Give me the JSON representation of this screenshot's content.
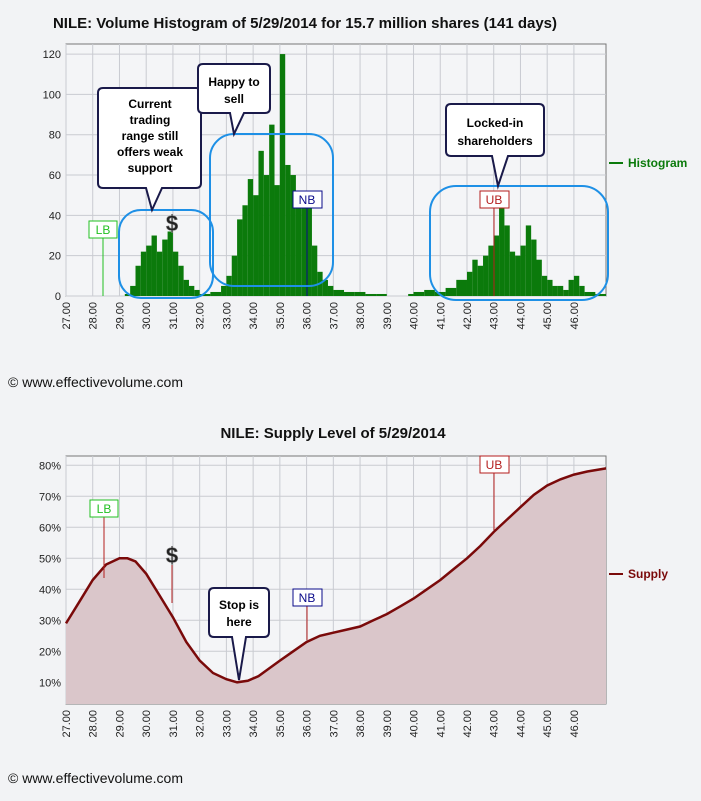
{
  "copyright": "© www.effectivevolume.com",
  "chart_data": [
    {
      "type": "bar",
      "title": "NILE: Volume Histogram of 5/29/2014 for 15.7 million shares (141 days)",
      "xlim": [
        27.0,
        47.2
      ],
      "ylim": [
        0,
        125
      ],
      "x_ticks": [
        "27.00",
        "28.00",
        "29.00",
        "30.00",
        "31.00",
        "32.00",
        "33.00",
        "34.00",
        "35.00",
        "36.00",
        "37.00",
        "38.00",
        "39.00",
        "40.00",
        "41.00",
        "42.00",
        "43.00",
        "44.00",
        "45.00",
        "46.00"
      ],
      "y_ticks": [
        0,
        20,
        40,
        60,
        80,
        100,
        120
      ],
      "grid": true,
      "legend": "right",
      "series": [
        {
          "name": "Histogram",
          "color": "#0b7a0b",
          "x": [
            27.0,
            27.4,
            27.8,
            28.2,
            28.6,
            29.0,
            29.2,
            29.4,
            29.6,
            29.8,
            30.0,
            30.2,
            30.4,
            30.6,
            30.8,
            31.0,
            31.2,
            31.4,
            31.6,
            31.8,
            32.0,
            32.4,
            32.8,
            33.0,
            33.2,
            33.4,
            33.6,
            33.8,
            34.0,
            34.2,
            34.4,
            34.6,
            34.8,
            35.0,
            35.2,
            35.4,
            35.6,
            35.8,
            36.0,
            36.2,
            36.4,
            36.6,
            36.8,
            37.0,
            37.4,
            37.8,
            38.2,
            38.6,
            39.0,
            39.4,
            39.8,
            40.0,
            40.4,
            40.8,
            41.2,
            41.6,
            42.0,
            42.2,
            42.4,
            42.6,
            42.8,
            43.0,
            43.2,
            43.4,
            43.6,
            43.8,
            44.0,
            44.2,
            44.4,
            44.6,
            44.8,
            45.0,
            45.2,
            45.4,
            45.6,
            45.8,
            46.0,
            46.2,
            46.4,
            46.8,
            47.2
          ],
          "values": [
            0,
            0,
            0,
            0,
            0,
            0,
            1,
            5,
            15,
            22,
            25,
            30,
            22,
            28,
            32,
            22,
            15,
            8,
            5,
            3,
            1,
            2,
            5,
            10,
            20,
            38,
            45,
            58,
            50,
            72,
            60,
            85,
            55,
            120,
            65,
            60,
            50,
            45,
            44,
            25,
            12,
            8,
            5,
            3,
            2,
            2,
            1,
            1,
            0,
            0,
            1,
            2,
            3,
            2,
            4,
            8,
            12,
            18,
            15,
            20,
            25,
            30,
            44,
            35,
            22,
            20,
            25,
            35,
            28,
            18,
            10,
            8,
            5,
            5,
            3,
            8,
            10,
            5,
            2,
            1,
            0
          ]
        }
      ],
      "annotations": [
        {
          "label": "LB",
          "x": 28.25,
          "color": "#22c022"
        },
        {
          "label": "$",
          "x": 30.85
        },
        {
          "label": "NB",
          "x": 36.0,
          "color": "#0a0a8a"
        },
        {
          "label": "UB",
          "x": 43.0,
          "color": "#b41e1e"
        },
        {
          "callout": [
            "Current",
            "trading",
            "range still",
            "offers weak",
            "support"
          ]
        },
        {
          "callout": [
            "Happy to",
            "sell"
          ]
        },
        {
          "callout": [
            "Locked-in",
            "shareholders"
          ]
        }
      ]
    },
    {
      "type": "area",
      "title": "NILE: Supply Level of 5/29/2014",
      "xlim": [
        27.0,
        47.2
      ],
      "ylim": [
        3,
        83
      ],
      "x_ticks": [
        "27.00",
        "28.00",
        "29.00",
        "30.00",
        "31.00",
        "32.00",
        "33.00",
        "34.00",
        "35.00",
        "36.00",
        "37.00",
        "38.00",
        "39.00",
        "40.00",
        "41.00",
        "42.00",
        "43.00",
        "44.00",
        "45.00",
        "46.00"
      ],
      "y_ticks": [
        "10%",
        "20%",
        "30%",
        "40%",
        "50%",
        "60%",
        "70%",
        "80%"
      ],
      "grid": true,
      "legend": "right",
      "series": [
        {
          "name": "Supply",
          "color": "#7a0a0a",
          "fill": "#dac6ca",
          "x": [
            27.0,
            27.5,
            28.0,
            28.5,
            29.0,
            29.3,
            29.6,
            30.0,
            30.5,
            31.0,
            31.5,
            32.0,
            32.5,
            33.0,
            33.4,
            33.8,
            34.2,
            34.6,
            35.0,
            35.5,
            36.0,
            36.5,
            37.0,
            37.5,
            38.0,
            38.5,
            39.0,
            39.5,
            40.0,
            40.5,
            41.0,
            41.5,
            42.0,
            42.5,
            43.0,
            43.5,
            44.0,
            44.5,
            45.0,
            45.5,
            46.0,
            46.5,
            47.2
          ],
          "values": [
            29,
            36,
            43,
            48,
            50,
            50,
            49,
            45,
            38,
            31,
            23,
            17,
            13,
            11,
            10,
            10.5,
            12,
            14.5,
            17,
            20,
            23,
            25,
            26,
            27,
            28,
            30,
            32,
            34.5,
            37,
            40,
            43,
            46.5,
            50,
            54,
            58.5,
            62.5,
            66.5,
            70.5,
            73.5,
            75.5,
            77,
            78,
            79
          ]
        }
      ],
      "annotations": [
        {
          "label": "LB",
          "x": 28.25,
          "color": "#22c022"
        },
        {
          "label": "$",
          "x": 30.85
        },
        {
          "label": "NB",
          "x": 36.0,
          "color": "#0a0a8a"
        },
        {
          "label": "UB",
          "x": 43.0,
          "color": "#b41e1e"
        },
        {
          "callout": [
            "Stop is",
            "here"
          ]
        }
      ]
    }
  ]
}
